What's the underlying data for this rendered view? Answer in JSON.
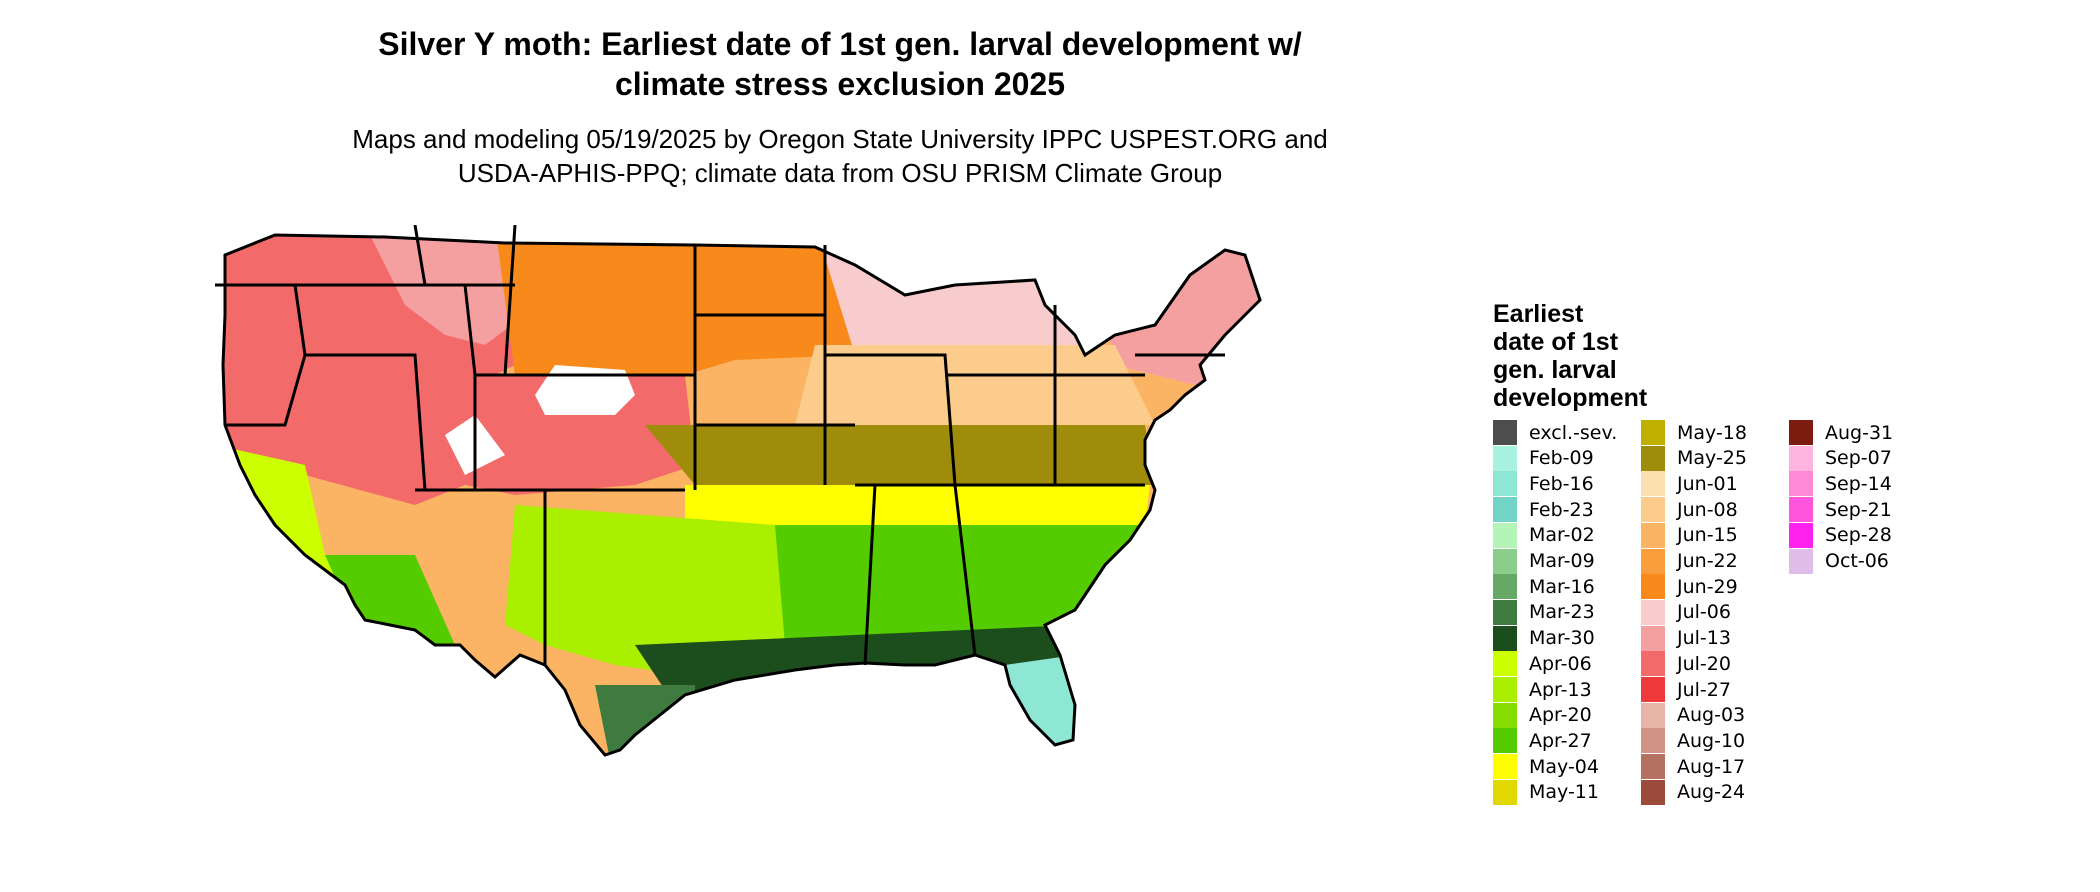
{
  "header": {
    "title_line1": "Silver Y moth: Earliest date of 1st gen. larval development w/",
    "title_line2": "climate stress exclusion 2025",
    "subtitle_line1": "Maps and modeling 05/19/2025 by Oregon State University IPPC USPEST.ORG and",
    "subtitle_line2": "USDA-APHIS-PPQ; climate data from OSU PRISM Climate Group"
  },
  "legend": {
    "title_lines": [
      "Earliest",
      "date of 1st",
      "gen. larval",
      "development"
    ],
    "items": [
      {
        "label": "excl.-sev.",
        "color": "#4d4d4d"
      },
      {
        "label": "Feb-09",
        "color": "#a8f2e0"
      },
      {
        "label": "Feb-16",
        "color": "#8ee6d4"
      },
      {
        "label": "Feb-23",
        "color": "#72d4c4"
      },
      {
        "label": "Mar-02",
        "color": "#b4f4b8"
      },
      {
        "label": "Mar-09",
        "color": "#8ccd8c"
      },
      {
        "label": "Mar-16",
        "color": "#66a866"
      },
      {
        "label": "Mar-23",
        "color": "#3f7a3f"
      },
      {
        "label": "Mar-30",
        "color": "#1c4d1c"
      },
      {
        "label": "Apr-06",
        "color": "#ccff00"
      },
      {
        "label": "Apr-13",
        "color": "#aaee00"
      },
      {
        "label": "Apr-20",
        "color": "#88dd00"
      },
      {
        "label": "Apr-27",
        "color": "#55cc00"
      },
      {
        "label": "May-04",
        "color": "#ffff00"
      },
      {
        "label": "May-11",
        "color": "#e0d800"
      },
      {
        "label": "May-18",
        "color": "#bfb000"
      },
      {
        "label": "May-25",
        "color": "#9e8c0a"
      },
      {
        "label": "Jun-01",
        "color": "#fde0b0"
      },
      {
        "label": "Jun-08",
        "color": "#fccc8c"
      },
      {
        "label": "Jun-15",
        "color": "#fbb464"
      },
      {
        "label": "Jun-22",
        "color": "#fa9e3c"
      },
      {
        "label": "Jun-29",
        "color": "#f88a1c"
      },
      {
        "label": "Jul-06",
        "color": "#f8cccc"
      },
      {
        "label": "Jul-13",
        "color": "#f5a0a0"
      },
      {
        "label": "Jul-20",
        "color": "#f26a6a"
      },
      {
        "label": "Jul-27",
        "color": "#ee3a3a"
      },
      {
        "label": "Aug-03",
        "color": "#e8b4a8"
      },
      {
        "label": "Aug-10",
        "color": "#cf9484"
      },
      {
        "label": "Aug-17",
        "color": "#b47060"
      },
      {
        "label": "Aug-24",
        "color": "#9c4a3c"
      },
      {
        "label": "Aug-31",
        "color": "#7c1c10"
      },
      {
        "label": "Sep-07",
        "color": "#ffb4e0"
      },
      {
        "label": "Sep-14",
        "color": "#ff88d8"
      },
      {
        "label": "Sep-21",
        "color": "#ff55dd"
      },
      {
        "label": "Sep-28",
        "color": "#ff22ee"
      },
      {
        "label": "Oct-06",
        "color": "#e0bce8"
      }
    ]
  },
  "map": {
    "outline_color": "#000000",
    "region_colors": {
      "northwest": "#f26a6a",
      "mountain_high": "#f5a0a0",
      "snow": "#ffffff",
      "northern_plains": "#f88a1c",
      "central_plains": "#fbb464",
      "great_lakes": "#f8cccc",
      "upper_midwest": "#fccc8c",
      "mid_south": "#9e8c0a",
      "south_yellow": "#ffff00",
      "southeast": "#55cc00",
      "texas": "#aaee00",
      "gulf_coast": "#1c4d1c",
      "south_texas": "#3f7a3f",
      "florida": "#8ee6d4",
      "california_valley": "#ccff00",
      "desert_sw": "#55cc00"
    }
  }
}
